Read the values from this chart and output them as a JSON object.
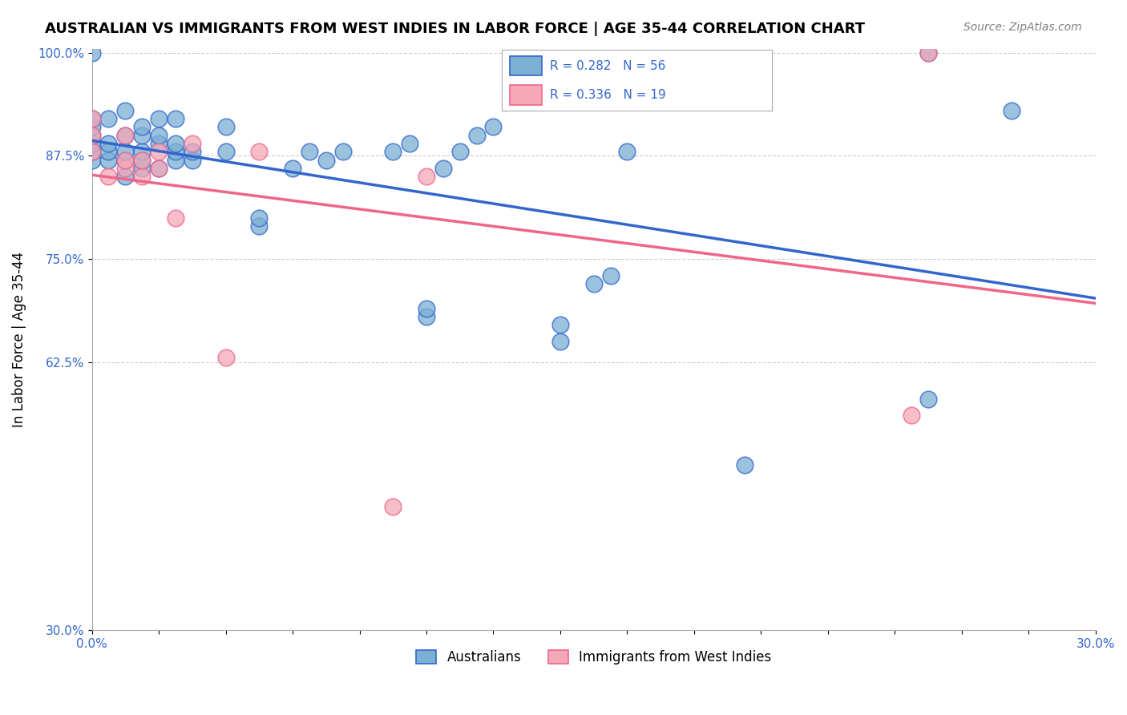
{
  "title": "AUSTRALIAN VS IMMIGRANTS FROM WEST INDIES IN LABOR FORCE | AGE 35-44 CORRELATION CHART",
  "source": "Source: ZipAtlas.com",
  "ylabel": "In Labor Force | Age 35-44",
  "xlabel": "",
  "xlim": [
    0.0,
    0.3
  ],
  "ylim": [
    0.3,
    1.005
  ],
  "xtick_labels": [
    "0.0%",
    "0.0%",
    "",
    "",
    "",
    "",
    "",
    "",
    "",
    "",
    "",
    "",
    "",
    "",
    "",
    "30.0%"
  ],
  "ytick_values": [
    0.3,
    0.625,
    0.75,
    0.875,
    1.0
  ],
  "ytick_labels": [
    "30.0%",
    "62.5%",
    "75.0%",
    "87.5%",
    "100.0%"
  ],
  "blue_color": "#7BAFD4",
  "pink_color": "#F4A8B8",
  "line_blue": "#3366CC",
  "line_pink": "#EE6688",
  "R_blue": 0.282,
  "N_blue": 56,
  "R_pink": 0.336,
  "N_pink": 19,
  "blue_points_x": [
    0.0,
    0.0,
    0.0,
    0.0,
    0.0,
    0.0,
    0.0,
    0.005,
    0.005,
    0.005,
    0.005,
    0.01,
    0.01,
    0.01,
    0.01,
    0.01,
    0.015,
    0.015,
    0.015,
    0.015,
    0.015,
    0.02,
    0.02,
    0.02,
    0.02,
    0.025,
    0.025,
    0.025,
    0.025,
    0.03,
    0.03,
    0.04,
    0.04,
    0.05,
    0.05,
    0.06,
    0.065,
    0.07,
    0.075,
    0.09,
    0.095,
    0.1,
    0.1,
    0.105,
    0.11,
    0.115,
    0.12,
    0.14,
    0.14,
    0.15,
    0.155,
    0.16,
    0.195,
    0.25,
    0.25,
    0.275
  ],
  "blue_points_y": [
    0.87,
    0.88,
    0.89,
    0.9,
    0.91,
    0.92,
    1.0,
    0.87,
    0.88,
    0.89,
    0.92,
    0.85,
    0.87,
    0.88,
    0.9,
    0.93,
    0.86,
    0.87,
    0.88,
    0.9,
    0.91,
    0.86,
    0.89,
    0.9,
    0.92,
    0.87,
    0.88,
    0.89,
    0.92,
    0.87,
    0.88,
    0.88,
    0.91,
    0.79,
    0.8,
    0.86,
    0.88,
    0.87,
    0.88,
    0.88,
    0.89,
    0.68,
    0.69,
    0.86,
    0.88,
    0.9,
    0.91,
    0.65,
    0.67,
    0.72,
    0.73,
    0.88,
    0.5,
    0.58,
    1.0,
    0.93
  ],
  "pink_points_x": [
    0.0,
    0.0,
    0.0,
    0.005,
    0.01,
    0.01,
    0.01,
    0.015,
    0.015,
    0.02,
    0.02,
    0.025,
    0.03,
    0.04,
    0.05,
    0.09,
    0.1,
    0.245,
    0.25
  ],
  "pink_points_y": [
    0.88,
    0.9,
    0.92,
    0.85,
    0.86,
    0.87,
    0.9,
    0.85,
    0.87,
    0.86,
    0.88,
    0.8,
    0.89,
    0.63,
    0.88,
    0.45,
    0.85,
    0.56,
    1.0
  ],
  "legend_label_blue": "Australians",
  "legend_label_pink": "Immigrants from West Indies",
  "background_color": "#ffffff",
  "grid_color": "#cccccc",
  "title_fontsize": 13,
  "axis_label_fontsize": 12,
  "tick_fontsize": 11
}
